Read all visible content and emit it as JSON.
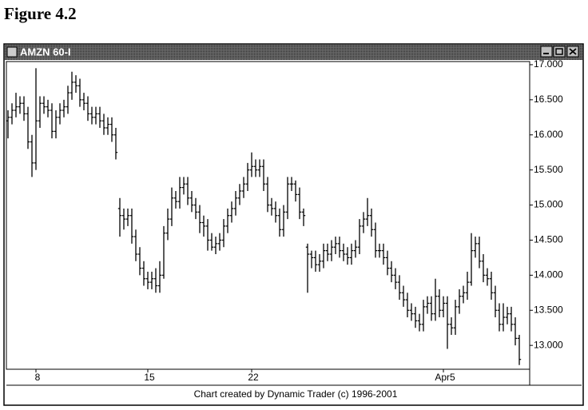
{
  "chart_data": {
    "type": "ohlc",
    "caption": "Figure 4.2",
    "title": "AMZN 60-I",
    "annotation": "Chart created by Dynamic Trader (c) 1996-2001",
    "categories": [
      null,
      null,
      null,
      null,
      null,
      null,
      null,
      "8",
      null,
      null,
      null,
      null,
      null,
      null,
      null,
      null,
      null,
      null,
      null,
      null,
      null,
      null,
      null,
      null,
      null,
      null,
      null,
      null,
      null,
      null,
      null,
      null,
      null,
      null,
      null,
      "15",
      null,
      null,
      null,
      null,
      null,
      null,
      null,
      null,
      null,
      null,
      null,
      null,
      null,
      null,
      null,
      null,
      null,
      null,
      null,
      null,
      null,
      null,
      null,
      null,
      null,
      "22",
      null,
      null,
      null,
      null,
      null,
      null,
      null,
      null,
      null,
      null,
      null,
      null,
      null,
      null,
      null,
      null,
      null,
      null,
      null,
      null,
      null,
      null,
      null,
      null,
      null,
      null,
      null,
      null,
      null,
      null,
      null,
      null,
      null,
      null,
      null,
      null,
      null,
      null,
      null,
      null,
      null,
      null,
      null,
      null,
      null,
      null,
      null,
      "Apr5",
      null,
      null,
      null,
      null,
      null,
      null,
      null,
      null,
      null,
      null,
      null,
      null,
      null,
      null,
      null,
      null,
      null,
      null,
      null
    ],
    "open": [
      16.2,
      16.25,
      16.35,
      16.4,
      16.45,
      16.3,
      15.9,
      15.6,
      16.2,
      16.45,
      16.4,
      16.35,
      16.05,
      16.25,
      16.35,
      16.4,
      16.6,
      16.75,
      16.7,
      16.5,
      16.45,
      16.3,
      16.25,
      16.3,
      16.2,
      16.1,
      16.15,
      16.0,
      14.95,
      14.85,
      14.8,
      14.85,
      14.55,
      14.3,
      14.1,
      13.95,
      13.9,
      13.95,
      13.85,
      14.0,
      14.6,
      14.8,
      15.1,
      15.05,
      15.25,
      15.3,
      15.1,
      15.0,
      14.9,
      14.75,
      14.7,
      14.5,
      14.4,
      14.45,
      14.5,
      14.7,
      14.85,
      14.95,
      15.1,
      15.2,
      15.3,
      15.5,
      15.55,
      15.5,
      15.55,
      15.3,
      15.0,
      14.95,
      14.85,
      14.65,
      14.9,
      15.3,
      15.3,
      15.15,
      14.9,
      14.4,
      14.3,
      14.25,
      14.15,
      14.2,
      14.35,
      14.3,
      14.4,
      14.45,
      14.35,
      14.3,
      14.25,
      14.35,
      14.4,
      14.7,
      14.8,
      14.85,
      14.65,
      14.35,
      14.35,
      14.25,
      14.1,
      14.0,
      13.9,
      13.75,
      13.65,
      13.5,
      13.45,
      13.35,
      13.3,
      13.55,
      13.6,
      13.45,
      13.7,
      13.5,
      13.6,
      13.3,
      13.25,
      13.55,
      13.7,
      13.75,
      13.9,
      14.35,
      14.45,
      14.2,
      14.0,
      13.95,
      13.75,
      13.5,
      13.3,
      13.4,
      13.45,
      13.3,
      13.1
    ],
    "high": [
      16.35,
      16.45,
      16.6,
      16.55,
      16.55,
      16.4,
      16.0,
      16.95,
      16.55,
      16.55,
      16.5,
      16.45,
      16.35,
      16.45,
      16.5,
      16.7,
      16.9,
      16.85,
      16.8,
      16.6,
      16.55,
      16.4,
      16.4,
      16.4,
      16.3,
      16.25,
      16.25,
      16.1,
      15.1,
      14.95,
      14.95,
      14.95,
      14.65,
      14.4,
      14.2,
      14.05,
      14.05,
      14.1,
      14.2,
      14.7,
      14.95,
      15.25,
      15.2,
      15.4,
      15.4,
      15.4,
      15.2,
      15.1,
      15.0,
      14.85,
      14.8,
      14.6,
      14.55,
      14.6,
      14.8,
      14.95,
      15.05,
      15.2,
      15.3,
      15.4,
      15.6,
      15.75,
      15.65,
      15.65,
      15.65,
      15.4,
      15.1,
      15.05,
      14.95,
      15.0,
      15.4,
      15.4,
      15.35,
      15.25,
      14.95,
      14.45,
      14.35,
      14.35,
      14.3,
      14.45,
      14.45,
      14.5,
      14.55,
      14.55,
      14.45,
      14.4,
      14.45,
      14.5,
      14.8,
      14.9,
      15.1,
      14.95,
      14.75,
      14.45,
      14.45,
      14.35,
      14.2,
      14.1,
      14.0,
      13.85,
      13.75,
      13.6,
      13.55,
      13.45,
      13.65,
      13.7,
      13.7,
      13.95,
      13.8,
      13.7,
      13.7,
      13.4,
      13.65,
      13.8,
      13.85,
      14.05,
      14.6,
      14.55,
      14.55,
      14.3,
      14.1,
      14.05,
      13.85,
      13.6,
      13.6,
      13.55,
      13.55,
      13.4,
      13.15
    ],
    "low": [
      15.95,
      16.15,
      16.25,
      16.3,
      16.2,
      15.8,
      15.4,
      15.5,
      16.1,
      16.3,
      16.25,
      15.95,
      15.95,
      16.15,
      16.25,
      16.3,
      16.5,
      16.6,
      16.4,
      16.35,
      16.2,
      16.15,
      16.15,
      16.1,
      16.0,
      16.0,
      15.9,
      15.65,
      14.55,
      14.65,
      14.7,
      14.45,
      14.2,
      14.0,
      13.85,
      13.8,
      13.8,
      13.75,
      13.75,
      13.95,
      14.5,
      14.7,
      14.95,
      14.95,
      15.15,
      15.0,
      14.9,
      14.8,
      14.6,
      14.55,
      14.35,
      14.35,
      14.3,
      14.35,
      14.4,
      14.6,
      14.75,
      14.85,
      15.0,
      15.1,
      15.2,
      15.4,
      15.4,
      15.4,
      15.2,
      14.9,
      14.85,
      14.75,
      14.55,
      14.55,
      14.8,
      15.2,
      15.05,
      14.8,
      14.7,
      13.75,
      14.1,
      14.05,
      14.05,
      14.1,
      14.2,
      14.2,
      14.3,
      14.25,
      14.2,
      14.15,
      14.15,
      14.25,
      14.3,
      14.6,
      14.7,
      14.55,
      14.25,
      14.25,
      14.15,
      14.0,
      13.9,
      13.8,
      13.65,
      13.55,
      13.4,
      13.35,
      13.25,
      13.2,
      13.2,
      13.45,
      13.35,
      13.35,
      13.4,
      13.4,
      12.95,
      13.15,
      13.15,
      13.45,
      13.6,
      13.65,
      13.85,
      14.25,
      14.1,
      13.9,
      13.85,
      13.65,
      13.4,
      13.2,
      13.2,
      13.3,
      13.2,
      13.0,
      12.72
    ],
    "close": [
      16.25,
      16.35,
      16.4,
      16.45,
      16.3,
      15.9,
      15.6,
      16.2,
      16.45,
      16.4,
      16.35,
      16.05,
      16.25,
      16.35,
      16.4,
      16.6,
      16.75,
      16.7,
      16.5,
      16.45,
      16.3,
      16.25,
      16.3,
      16.2,
      16.1,
      16.15,
      16.0,
      15.75,
      14.85,
      14.8,
      14.85,
      14.55,
      14.3,
      14.1,
      13.95,
      13.9,
      13.95,
      13.85,
      14.0,
      14.6,
      14.8,
      15.1,
      15.05,
      15.25,
      15.3,
      15.1,
      15.0,
      14.9,
      14.75,
      14.7,
      14.5,
      14.4,
      14.45,
      14.5,
      14.7,
      14.85,
      14.95,
      15.1,
      15.2,
      15.3,
      15.5,
      15.55,
      15.5,
      15.55,
      15.3,
      15.0,
      14.95,
      14.85,
      14.65,
      14.9,
      15.3,
      15.3,
      15.15,
      14.9,
      14.85,
      14.3,
      14.25,
      14.15,
      14.2,
      14.35,
      14.3,
      14.4,
      14.45,
      14.35,
      14.3,
      14.25,
      14.35,
      14.4,
      14.7,
      14.8,
      14.85,
      14.65,
      14.35,
      14.35,
      14.25,
      14.1,
      14.0,
      13.9,
      13.75,
      13.65,
      13.5,
      13.45,
      13.35,
      13.3,
      13.55,
      13.6,
      13.45,
      13.7,
      13.5,
      13.6,
      13.3,
      13.25,
      13.55,
      13.7,
      13.75,
      13.9,
      14.35,
      14.45,
      14.2,
      14.0,
      13.95,
      13.75,
      13.5,
      13.3,
      13.4,
      13.45,
      13.3,
      13.1,
      12.8
    ],
    "color": "#000000",
    "ylim": [
      12.66,
      17.045
    ],
    "yticks": [
      {
        "value": 13,
        "label": "13.000"
      },
      {
        "value": 13.5,
        "label": "13.500"
      },
      {
        "value": 14,
        "label": "14.000"
      },
      {
        "value": 14.5,
        "label": "14.500"
      },
      {
        "value": 15,
        "label": "15.000"
      },
      {
        "value": 15.5,
        "label": "15.500"
      },
      {
        "value": 16,
        "label": "16.000"
      },
      {
        "value": 16.5,
        "label": "16.500"
      },
      {
        "value": 17,
        "label": "17.000"
      }
    ],
    "grid": false
  }
}
